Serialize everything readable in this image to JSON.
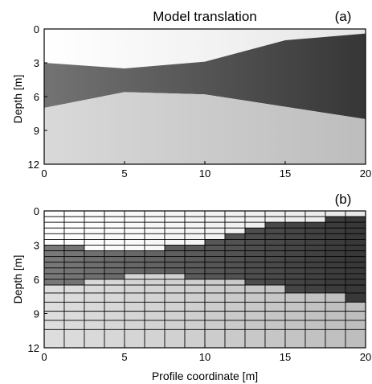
{
  "chart_data": [
    {
      "panel_label": "(a)",
      "title": "Model translation",
      "type": "area",
      "xlabel": "",
      "ylabel": "Depth [m]",
      "xlim": [
        0,
        20
      ],
      "ylim": [
        0,
        12
      ],
      "y_inverted": true,
      "xticks": [
        "0",
        "5",
        "10",
        "15",
        "20"
      ],
      "yticks": [
        "0",
        "3",
        "6",
        "9",
        "12"
      ],
      "grid": false,
      "layers": [
        {
          "top": [
            [
              0,
              0
            ],
            [
              20,
              0
            ]
          ],
          "bottom": [
            [
              0,
              3
            ],
            [
              5,
              3.5
            ],
            [
              10,
              2.9
            ],
            [
              15,
              1.0
            ],
            [
              20,
              0.4
            ]
          ],
          "color_gradient": [
            "#ffffff",
            "#e6e6e6"
          ]
        },
        {
          "top": [
            [
              0,
              3
            ],
            [
              5,
              3.5
            ],
            [
              10,
              2.9
            ],
            [
              15,
              1.0
            ],
            [
              20,
              0.4
            ]
          ],
          "bottom": [
            [
              0,
              7
            ],
            [
              5,
              5.6
            ],
            [
              10,
              5.8
            ],
            [
              15,
              6.9
            ],
            [
              20,
              8.0
            ]
          ],
          "color_gradient": [
            "#737373",
            "#363636"
          ]
        },
        {
          "top": [
            [
              0,
              7
            ],
            [
              5,
              5.6
            ],
            [
              10,
              5.8
            ],
            [
              15,
              6.9
            ],
            [
              20,
              8.0
            ]
          ],
          "bottom": [
            [
              0,
              12
            ],
            [
              20,
              12
            ]
          ],
          "color_gradient": [
            "#d9d9d9",
            "#bdbdbd"
          ]
        }
      ]
    },
    {
      "panel_label": "(b)",
      "title": "",
      "type": "heatmap",
      "xlabel": "Profile coordinate [m]",
      "ylabel": "Depth [m]",
      "xlim": [
        0,
        20
      ],
      "ylim": [
        0,
        12
      ],
      "y_inverted": true,
      "xticks": [
        "0",
        "5",
        "10",
        "15",
        "20"
      ],
      "yticks": [
        "0",
        "3",
        "6",
        "9",
        "12"
      ],
      "grid": true,
      "n_columns": 16,
      "row_boundaries": [
        0,
        0.5,
        1.0,
        1.5,
        2.0,
        2.5,
        3.0,
        3.5,
        4.0,
        4.5,
        5.0,
        5.5,
        6.0,
        6.5,
        7.2,
        8.0,
        8.8,
        9.6,
        10.4,
        12.0
      ],
      "layer1_bottom": [
        [
          0,
          3
        ],
        [
          5,
          3.5
        ],
        [
          10,
          2.9
        ],
        [
          15,
          1.0
        ],
        [
          20,
          0.4
        ]
      ],
      "layer2_bottom": [
        [
          0,
          7
        ],
        [
          5,
          5.6
        ],
        [
          10,
          5.8
        ],
        [
          15,
          6.9
        ],
        [
          20,
          8.0
        ]
      ],
      "layer_colors": [
        [
          "#ffffff",
          "#e8e8e8"
        ],
        [
          "#7a7a7a",
          "#363636"
        ],
        [
          "#dedede",
          "#bdbdbd"
        ]
      ]
    }
  ]
}
